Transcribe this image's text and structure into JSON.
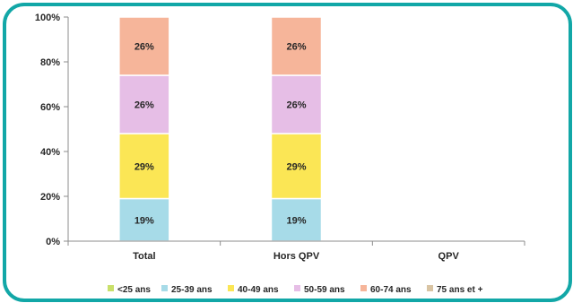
{
  "chart_data": {
    "type": "bar",
    "stacked": true,
    "categories": [
      "Total",
      "Hors QPV",
      "QPV"
    ],
    "series": [
      {
        "name": "<25 ans",
        "values": [
          0,
          0,
          0
        ],
        "color": "#c9e06a"
      },
      {
        "name": "25-39 ans",
        "values": [
          19,
          19,
          0
        ],
        "color": "#a7dbe8"
      },
      {
        "name": "40-49 ans",
        "values": [
          29,
          29,
          0
        ],
        "color": "#fbe655"
      },
      {
        "name": "50-59 ans",
        "values": [
          26,
          26,
          0
        ],
        "color": "#e6bee6"
      },
      {
        "name": "60-74 ans",
        "values": [
          26,
          26,
          0
        ],
        "color": "#f6b59a"
      },
      {
        "name": "75 ans et +",
        "values": [
          0,
          0,
          0
        ],
        "color": "#d9c4a3"
      }
    ],
    "data_labels": [
      [
        "",
        "19%",
        "29%",
        "26%",
        "26%",
        ""
      ],
      [
        "",
        "19%",
        "29%",
        "26%",
        "26%",
        ""
      ],
      [
        "",
        "",
        "",
        "",
        "",
        ""
      ]
    ],
    "yticks": [
      "0%",
      "20%",
      "40%",
      "60%",
      "80%",
      "100%"
    ],
    "ylim": [
      0,
      100
    ],
    "grid": false,
    "legend_position": "bottom",
    "frame_color": "#12a7a7"
  }
}
